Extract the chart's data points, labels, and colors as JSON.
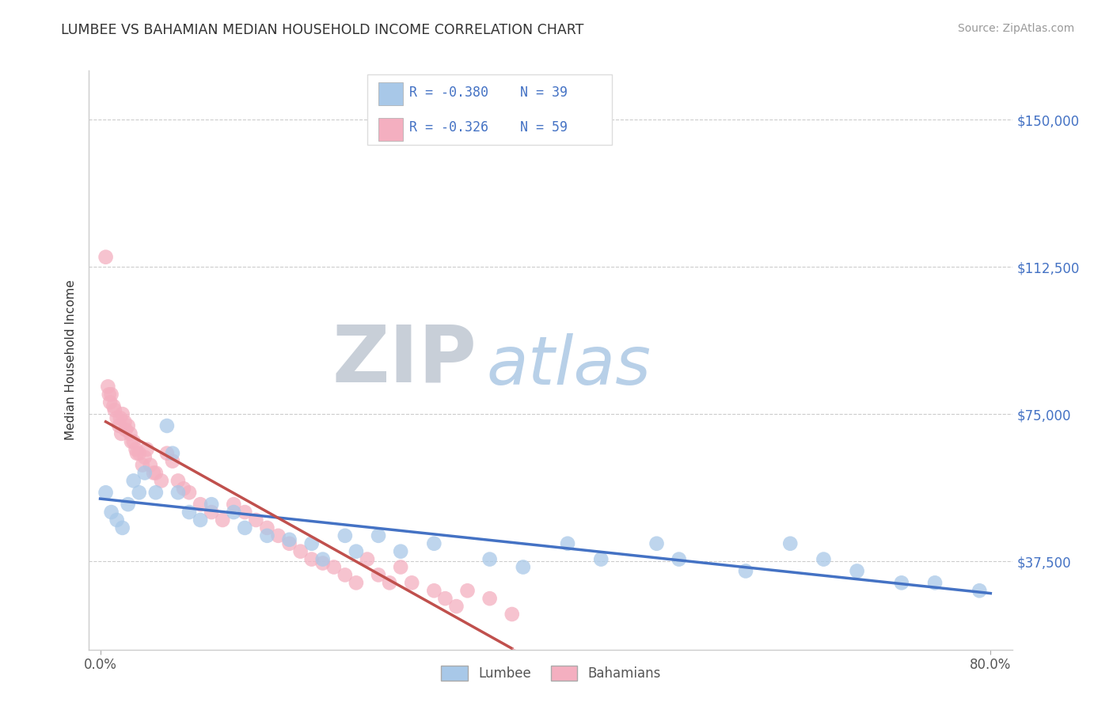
{
  "title": "LUMBEE VS BAHAMIAN MEDIAN HOUSEHOLD INCOME CORRELATION CHART",
  "source_text": "Source: ZipAtlas.com",
  "ylabel": "Median Household Income",
  "xlim": [
    -0.01,
    0.82
  ],
  "ylim": [
    15000,
    162500
  ],
  "xtick_vals": [
    0.0,
    0.8
  ],
  "xtick_labels": [
    "0.0%",
    "80.0%"
  ],
  "ytick_vals": [
    37500,
    75000,
    112500,
    150000
  ],
  "ytick_labels": [
    "$37,500",
    "$75,000",
    "$112,500",
    "$150,000"
  ],
  "lumbee_R": -0.38,
  "lumbee_N": 39,
  "bahamian_R": -0.326,
  "bahamian_N": 59,
  "lumbee_color": "#a8c8e8",
  "bahamian_color": "#f4afc0",
  "lumbee_line_color": "#4472c4",
  "bahamian_line_color": "#c0504d",
  "bahamian_dash_color": "#e8a0a8",
  "watermark_zip_color": "#c8cfd8",
  "watermark_atlas_color": "#b8d0e8",
  "lumbee_x": [
    0.005,
    0.01,
    0.015,
    0.02,
    0.025,
    0.03,
    0.035,
    0.04,
    0.05,
    0.06,
    0.065,
    0.07,
    0.08,
    0.09,
    0.1,
    0.12,
    0.13,
    0.15,
    0.17,
    0.19,
    0.2,
    0.22,
    0.23,
    0.25,
    0.27,
    0.3,
    0.35,
    0.38,
    0.42,
    0.45,
    0.5,
    0.52,
    0.58,
    0.62,
    0.65,
    0.68,
    0.72,
    0.75,
    0.79
  ],
  "lumbee_y": [
    55000,
    50000,
    48000,
    46000,
    52000,
    58000,
    55000,
    60000,
    55000,
    72000,
    65000,
    55000,
    50000,
    48000,
    52000,
    50000,
    46000,
    44000,
    43000,
    42000,
    38000,
    44000,
    40000,
    44000,
    40000,
    42000,
    38000,
    36000,
    42000,
    38000,
    42000,
    38000,
    35000,
    42000,
    38000,
    35000,
    32000,
    32000,
    30000
  ],
  "bahamian_x": [
    0.005,
    0.007,
    0.008,
    0.009,
    0.01,
    0.012,
    0.013,
    0.015,
    0.017,
    0.018,
    0.019,
    0.02,
    0.022,
    0.023,
    0.025,
    0.027,
    0.028,
    0.03,
    0.032,
    0.033,
    0.035,
    0.038,
    0.04,
    0.042,
    0.045,
    0.048,
    0.05,
    0.055,
    0.06,
    0.065,
    0.07,
    0.075,
    0.08,
    0.09,
    0.1,
    0.11,
    0.12,
    0.13,
    0.14,
    0.15,
    0.16,
    0.17,
    0.18,
    0.19,
    0.2,
    0.21,
    0.22,
    0.23,
    0.24,
    0.25,
    0.26,
    0.27,
    0.28,
    0.3,
    0.31,
    0.32,
    0.33,
    0.35,
    0.37
  ],
  "bahamian_y": [
    115000,
    82000,
    80000,
    78000,
    80000,
    77000,
    76000,
    74000,
    72000,
    74000,
    70000,
    75000,
    73000,
    71000,
    72000,
    70000,
    68000,
    68000,
    66000,
    65000,
    65000,
    62000,
    64000,
    66000,
    62000,
    60000,
    60000,
    58000,
    65000,
    63000,
    58000,
    56000,
    55000,
    52000,
    50000,
    48000,
    52000,
    50000,
    48000,
    46000,
    44000,
    42000,
    40000,
    38000,
    37000,
    36000,
    34000,
    32000,
    38000,
    34000,
    32000,
    36000,
    32000,
    30000,
    28000,
    26000,
    30000,
    28000,
    24000
  ]
}
